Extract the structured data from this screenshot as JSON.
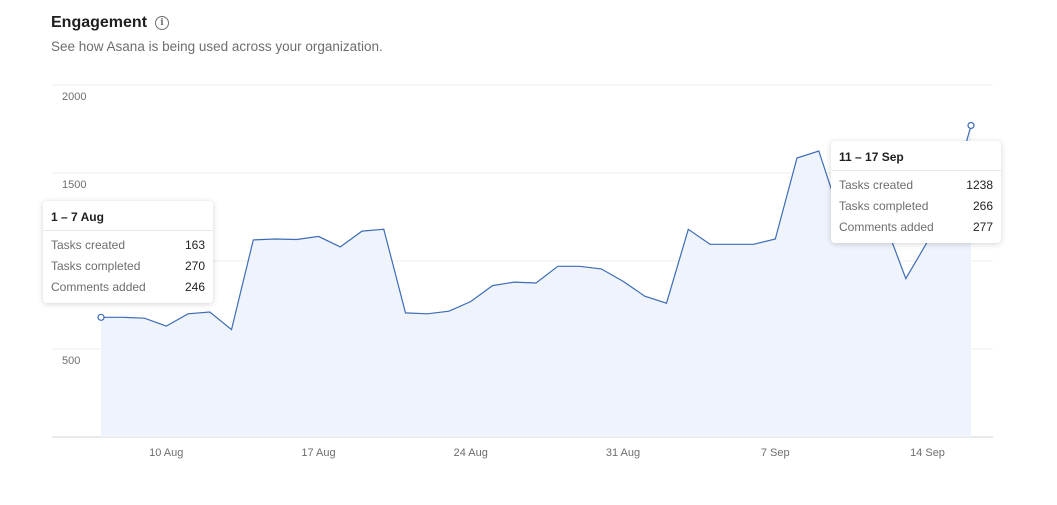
{
  "header": {
    "title": "Engagement",
    "subtitle": "See how Asana is being used across your organization."
  },
  "chart_data": {
    "type": "area",
    "title": "Engagement",
    "xlabel": "",
    "ylabel": "",
    "y_ticks": [
      "2000",
      "1500",
      "500"
    ],
    "x_ticks": [
      "10 Aug",
      "17 Aug",
      "24 Aug",
      "31 Aug",
      "7 Sep",
      "14 Sep"
    ],
    "ylim": [
      0,
      2000
    ],
    "grid": true,
    "series": [
      {
        "values": [
          680,
          680,
          675,
          630,
          700,
          710,
          610,
          1120,
          1125,
          1122,
          1140,
          1080,
          1170,
          1180,
          705,
          700,
          715,
          770,
          860,
          880,
          875,
          970,
          970,
          955,
          885,
          800,
          760,
          1180,
          1095,
          1095,
          1095,
          1125,
          1585,
          1625,
          1250,
          1210,
          1230,
          900,
          1110,
          1330,
          1770
        ],
        "color": "#3e6db5",
        "fill": "#eef3fc"
      }
    ],
    "tooltips": [
      {
        "title": "1 – 7 Aug",
        "rows": [
          {
            "label": "Tasks created",
            "value": "163"
          },
          {
            "label": "Tasks completed",
            "value": "270"
          },
          {
            "label": "Comments added",
            "value": "246"
          }
        ]
      },
      {
        "title": "11 – 17 Sep",
        "rows": [
          {
            "label": "Tasks created",
            "value": "1238"
          },
          {
            "label": "Tasks completed",
            "value": "266"
          },
          {
            "label": "Comments added",
            "value": "277"
          }
        ]
      }
    ]
  }
}
